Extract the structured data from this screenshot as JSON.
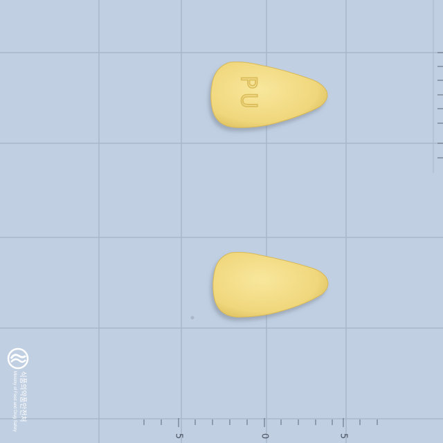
{
  "photo": {
    "subject": "two yellow triangular tablets on a blue measurement grid, front and back view",
    "colors": {
      "background": "#c0cfe2",
      "grid": "#a9b7cb",
      "tablet": "#f2dc86",
      "tablet_shade": "#dcbf5c",
      "imprint": "#e3c668"
    }
  },
  "tablet_front": {
    "imprint": "PU"
  },
  "ruler": {
    "labels": [
      "5",
      "0",
      "5"
    ]
  },
  "watermark": {
    "logo": "mfds-logo-icon",
    "korean_name": "식품의약품안전처",
    "english_name": "Ministry of Food and Drug Safety"
  }
}
